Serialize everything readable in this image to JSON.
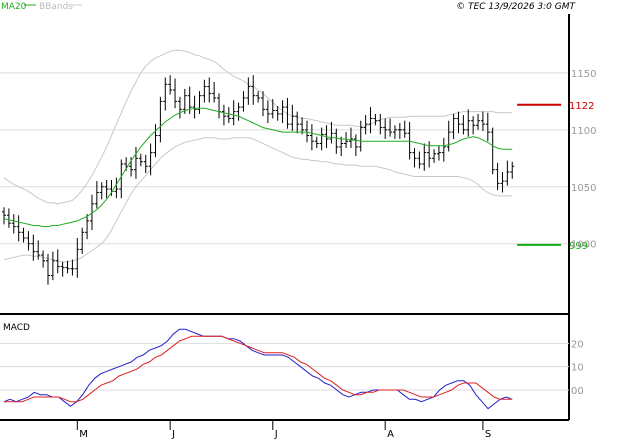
{
  "header": {
    "legend_ma": "MA20",
    "legend_bbands": "BBands",
    "copyright": "© TEC 13/9/2026 3:0 GMT"
  },
  "colors": {
    "bars": "#000000",
    "ma20": "#22aa22",
    "bbands": "#c8c8c8",
    "macd_line": "#2222cc",
    "signal_line": "#dd2222",
    "resistance": "#cc0000",
    "support": "#11aa11",
    "grid": "#dddddd"
  },
  "chart_data": [
    {
      "type": "ohlc",
      "panel": "price",
      "legend": [
        "MA20",
        "BBands"
      ],
      "y_ticks": [
        {
          "value": 1000,
          "label": "1000"
        },
        {
          "value": 1050,
          "label": "1050"
        },
        {
          "value": 1100,
          "label": "1100"
        },
        {
          "value": 1150,
          "label": "1150"
        }
      ],
      "ylim": [
        940,
        1200
      ],
      "x_range": [
        0,
        115
      ],
      "x_ticks": [
        {
          "x": 15,
          "label": "M"
        },
        {
          "x": 34,
          "label": "J"
        },
        {
          "x": 55,
          "label": "J"
        },
        {
          "x": 78,
          "label": "A"
        },
        {
          "x": 98,
          "label": "S"
        }
      ],
      "levels": [
        {
          "name": "resistance",
          "value": 1122,
          "label": "1122",
          "color": "#cc0000",
          "x_from": 105,
          "x_to": 114
        },
        {
          "name": "support",
          "value": 999,
          "label": "999",
          "color": "#11aa11",
          "x_from": 105,
          "x_to": 114
        }
      ],
      "closes": [
        1025,
        1018,
        1015,
        1010,
        1005,
        1000,
        993,
        990,
        985,
        972,
        985,
        980,
        979,
        978,
        978,
        995,
        1010,
        1020,
        1035,
        1045,
        1050,
        1048,
        1046,
        1048,
        1070,
        1068,
        1065,
        1075,
        1072,
        1068,
        1080,
        1095,
        1125,
        1140,
        1135,
        1125,
        1118,
        1130,
        1120,
        1118,
        1130,
        1138,
        1132,
        1128,
        1116,
        1112,
        1110,
        1116,
        1120,
        1128,
        1138,
        1130,
        1128,
        1118,
        1114,
        1117,
        1114,
        1120,
        1105,
        1112,
        1105,
        1100,
        1095,
        1090,
        1088,
        1096,
        1092,
        1097,
        1085,
        1088,
        1090,
        1092,
        1085,
        1102,
        1105,
        1110,
        1108,
        1102,
        1100,
        1098,
        1100,
        1100,
        1097,
        1080,
        1075,
        1070,
        1080,
        1075,
        1079,
        1080,
        1085,
        1098,
        1110,
        1105,
        1100,
        1108,
        1104,
        1108,
        1105,
        1098,
        1065,
        1053,
        1055,
        1063,
        1068
      ],
      "ma20": [
        1022,
        1021,
        1020,
        1019,
        1018,
        1017,
        1016,
        1016,
        1015,
        1015,
        1016,
        1016,
        1017,
        1018,
        1019,
        1020,
        1022,
        1024,
        1027,
        1030,
        1034,
        1039,
        1045,
        1052,
        1059,
        1066,
        1073,
        1079,
        1085,
        1090,
        1095,
        1099,
        1103,
        1107,
        1110,
        1113,
        1115,
        1117,
        1118,
        1119,
        1119,
        1119,
        1118,
        1117,
        1116,
        1115,
        1114,
        1113,
        1112,
        1110,
        1108,
        1106,
        1104,
        1102,
        1101,
        1100,
        1099,
        1098,
        1098,
        1098,
        1098,
        1098,
        1098,
        1097,
        1096,
        1095,
        1094,
        1093,
        1093,
        1092,
        1092,
        1091,
        1091,
        1090,
        1090,
        1090,
        1090,
        1090,
        1090,
        1090,
        1090,
        1090,
        1090,
        1090,
        1089,
        1088,
        1087,
        1086,
        1086,
        1086,
        1086,
        1087,
        1088,
        1090,
        1092,
        1093,
        1094,
        1093,
        1091,
        1089,
        1086,
        1084,
        1083,
        1083,
        1083
      ],
      "bb_upper": [
        1058,
        1055,
        1052,
        1050,
        1048,
        1046,
        1043,
        1040,
        1038,
        1036,
        1036,
        1035,
        1036,
        1037,
        1038,
        1042,
        1047,
        1053,
        1060,
        1068,
        1076,
        1085,
        1095,
        1105,
        1115,
        1125,
        1134,
        1142,
        1150,
        1156,
        1160,
        1163,
        1165,
        1167,
        1169,
        1170,
        1170,
        1169,
        1168,
        1166,
        1165,
        1163,
        1162,
        1160,
        1157,
        1153,
        1150,
        1147,
        1145,
        1143,
        1140,
        1138,
        1135,
        1132,
        1128,
        1124,
        1120,
        1117,
        1114,
        1112,
        1111,
        1110,
        1110,
        1109,
        1108,
        1107,
        1106,
        1105,
        1104,
        1104,
        1104,
        1104,
        1103,
        1103,
        1103,
        1105,
        1107,
        1109,
        1110,
        1111,
        1111,
        1111,
        1111,
        1112,
        1112,
        1112,
        1112,
        1112,
        1112,
        1112,
        1112,
        1113,
        1114,
        1115,
        1116,
        1116,
        1116,
        1116,
        1116,
        1116,
        1116,
        1115,
        1115,
        1115,
        1115
      ],
      "bb_lower": [
        986,
        987,
        988,
        989,
        990,
        990,
        989,
        989,
        988,
        987,
        986,
        985,
        984,
        984,
        985,
        986,
        988,
        991,
        994,
        997,
        1000,
        1005,
        1012,
        1020,
        1028,
        1036,
        1044,
        1050,
        1055,
        1060,
        1065,
        1070,
        1075,
        1079,
        1082,
        1085,
        1087,
        1089,
        1090,
        1091,
        1092,
        1093,
        1093,
        1093,
        1092,
        1092,
        1092,
        1093,
        1093,
        1093,
        1093,
        1092,
        1090,
        1088,
        1086,
        1084,
        1082,
        1080,
        1078,
        1076,
        1075,
        1074,
        1074,
        1073,
        1073,
        1072,
        1072,
        1071,
        1070,
        1070,
        1069,
        1069,
        1069,
        1068,
        1068,
        1068,
        1068,
        1067,
        1066,
        1065,
        1063,
        1062,
        1061,
        1060,
        1059,
        1059,
        1059,
        1059,
        1059,
        1059,
        1059,
        1059,
        1059,
        1059,
        1058,
        1057,
        1055,
        1052,
        1048,
        1045,
        1043,
        1042,
        1042,
        1042,
        1042
      ]
    },
    {
      "type": "line",
      "panel": "macd",
      "title": "MACD",
      "y_ticks": [
        {
          "value": 20,
          "label": "20"
        },
        {
          "value": 10,
          "label": "10"
        },
        {
          "value": 0,
          "label": "00"
        }
      ],
      "ylim": [
        -12,
        30
      ],
      "x_range": [
        0,
        115
      ],
      "series": [
        {
          "values": [
            -5,
            -4,
            -5,
            -4,
            -3,
            -1,
            -2,
            -2,
            -3,
            -3,
            -5,
            -7,
            -5,
            -2,
            2,
            5,
            7,
            8,
            9,
            10,
            11,
            12,
            14,
            15,
            17,
            18,
            19,
            21,
            24,
            26,
            26,
            25,
            24,
            23,
            23,
            23,
            23,
            22,
            22,
            21,
            19,
            17,
            16,
            15,
            15,
            15,
            15,
            14,
            12,
            10,
            8,
            6,
            5,
            3,
            2,
            0,
            -2,
            -3,
            -2,
            -1,
            -1,
            0,
            0,
            0,
            0,
            0,
            -2,
            -4,
            -4,
            -5,
            -4,
            -3,
            0,
            2,
            3,
            4,
            4,
            2,
            -2,
            -5,
            -8,
            -6,
            -4,
            -3,
            -4
          ]
        },
        {
          "values": [
            -5,
            -5,
            -5,
            -5,
            -4,
            -3,
            -3,
            -3,
            -3,
            -3,
            -4,
            -5,
            -5,
            -4,
            -2,
            0,
            2,
            3,
            4,
            6,
            7,
            8,
            9,
            11,
            12,
            14,
            15,
            17,
            19,
            21,
            22,
            23,
            23,
            23,
            23,
            23,
            23,
            22,
            21,
            20,
            19,
            18,
            17,
            16,
            16,
            16,
            16,
            15,
            14,
            12,
            11,
            9,
            7,
            5,
            4,
            2,
            0,
            -1,
            -2,
            -2,
            -1,
            -1,
            0,
            0,
            0,
            0,
            0,
            -1,
            -2,
            -3,
            -3,
            -3,
            -2,
            -1,
            0,
            2,
            3,
            3,
            3,
            1,
            -1,
            -3,
            -4,
            -4,
            -4
          ]
        }
      ]
    }
  ]
}
